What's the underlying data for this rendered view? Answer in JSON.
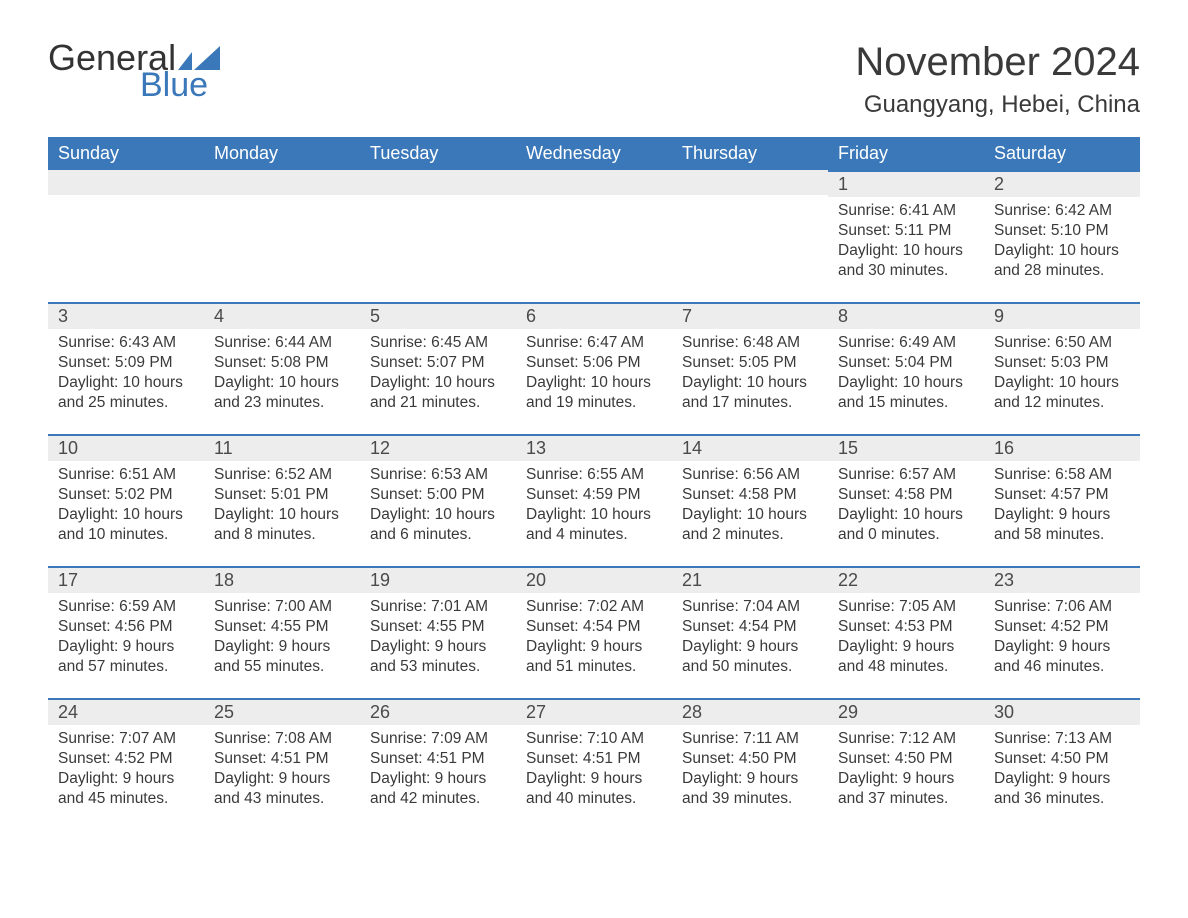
{
  "logo": {
    "text_general": "General",
    "text_blue": "Blue",
    "flag_color": "#3a78b9"
  },
  "title": "November 2024",
  "location": "Guangyang, Hebei, China",
  "colors": {
    "header_bg": "#3a78b9",
    "header_text": "#ffffff",
    "daynum_bg": "#ededed",
    "border": "#3a78b9",
    "body_text": "#3a3a3a",
    "page_bg": "#ffffff"
  },
  "typography": {
    "title_fontsize": 40,
    "location_fontsize": 24,
    "dow_fontsize": 18,
    "body_fontsize": 15.5
  },
  "daysOfWeek": [
    "Sunday",
    "Monday",
    "Tuesday",
    "Wednesday",
    "Thursday",
    "Friday",
    "Saturday"
  ],
  "labels": {
    "sunrise": "Sunrise",
    "sunset": "Sunset",
    "daylight": "Daylight"
  },
  "weeks": [
    [
      null,
      null,
      null,
      null,
      null,
      {
        "n": "1",
        "sunrise": "6:41 AM",
        "sunset": "5:11 PM",
        "daylight": "10 hours and 30 minutes."
      },
      {
        "n": "2",
        "sunrise": "6:42 AM",
        "sunset": "5:10 PM",
        "daylight": "10 hours and 28 minutes."
      }
    ],
    [
      {
        "n": "3",
        "sunrise": "6:43 AM",
        "sunset": "5:09 PM",
        "daylight": "10 hours and 25 minutes."
      },
      {
        "n": "4",
        "sunrise": "6:44 AM",
        "sunset": "5:08 PM",
        "daylight": "10 hours and 23 minutes."
      },
      {
        "n": "5",
        "sunrise": "6:45 AM",
        "sunset": "5:07 PM",
        "daylight": "10 hours and 21 minutes."
      },
      {
        "n": "6",
        "sunrise": "6:47 AM",
        "sunset": "5:06 PM",
        "daylight": "10 hours and 19 minutes."
      },
      {
        "n": "7",
        "sunrise": "6:48 AM",
        "sunset": "5:05 PM",
        "daylight": "10 hours and 17 minutes."
      },
      {
        "n": "8",
        "sunrise": "6:49 AM",
        "sunset": "5:04 PM",
        "daylight": "10 hours and 15 minutes."
      },
      {
        "n": "9",
        "sunrise": "6:50 AM",
        "sunset": "5:03 PM",
        "daylight": "10 hours and 12 minutes."
      }
    ],
    [
      {
        "n": "10",
        "sunrise": "6:51 AM",
        "sunset": "5:02 PM",
        "daylight": "10 hours and 10 minutes."
      },
      {
        "n": "11",
        "sunrise": "6:52 AM",
        "sunset": "5:01 PM",
        "daylight": "10 hours and 8 minutes."
      },
      {
        "n": "12",
        "sunrise": "6:53 AM",
        "sunset": "5:00 PM",
        "daylight": "10 hours and 6 minutes."
      },
      {
        "n": "13",
        "sunrise": "6:55 AM",
        "sunset": "4:59 PM",
        "daylight": "10 hours and 4 minutes."
      },
      {
        "n": "14",
        "sunrise": "6:56 AM",
        "sunset": "4:58 PM",
        "daylight": "10 hours and 2 minutes."
      },
      {
        "n": "15",
        "sunrise": "6:57 AM",
        "sunset": "4:58 PM",
        "daylight": "10 hours and 0 minutes."
      },
      {
        "n": "16",
        "sunrise": "6:58 AM",
        "sunset": "4:57 PM",
        "daylight": "9 hours and 58 minutes."
      }
    ],
    [
      {
        "n": "17",
        "sunrise": "6:59 AM",
        "sunset": "4:56 PM",
        "daylight": "9 hours and 57 minutes."
      },
      {
        "n": "18",
        "sunrise": "7:00 AM",
        "sunset": "4:55 PM",
        "daylight": "9 hours and 55 minutes."
      },
      {
        "n": "19",
        "sunrise": "7:01 AM",
        "sunset": "4:55 PM",
        "daylight": "9 hours and 53 minutes."
      },
      {
        "n": "20",
        "sunrise": "7:02 AM",
        "sunset": "4:54 PM",
        "daylight": "9 hours and 51 minutes."
      },
      {
        "n": "21",
        "sunrise": "7:04 AM",
        "sunset": "4:54 PM",
        "daylight": "9 hours and 50 minutes."
      },
      {
        "n": "22",
        "sunrise": "7:05 AM",
        "sunset": "4:53 PM",
        "daylight": "9 hours and 48 minutes."
      },
      {
        "n": "23",
        "sunrise": "7:06 AM",
        "sunset": "4:52 PM",
        "daylight": "9 hours and 46 minutes."
      }
    ],
    [
      {
        "n": "24",
        "sunrise": "7:07 AM",
        "sunset": "4:52 PM",
        "daylight": "9 hours and 45 minutes."
      },
      {
        "n": "25",
        "sunrise": "7:08 AM",
        "sunset": "4:51 PM",
        "daylight": "9 hours and 43 minutes."
      },
      {
        "n": "26",
        "sunrise": "7:09 AM",
        "sunset": "4:51 PM",
        "daylight": "9 hours and 42 minutes."
      },
      {
        "n": "27",
        "sunrise": "7:10 AM",
        "sunset": "4:51 PM",
        "daylight": "9 hours and 40 minutes."
      },
      {
        "n": "28",
        "sunrise": "7:11 AM",
        "sunset": "4:50 PM",
        "daylight": "9 hours and 39 minutes."
      },
      {
        "n": "29",
        "sunrise": "7:12 AM",
        "sunset": "4:50 PM",
        "daylight": "9 hours and 37 minutes."
      },
      {
        "n": "30",
        "sunrise": "7:13 AM",
        "sunset": "4:50 PM",
        "daylight": "9 hours and 36 minutes."
      }
    ]
  ]
}
